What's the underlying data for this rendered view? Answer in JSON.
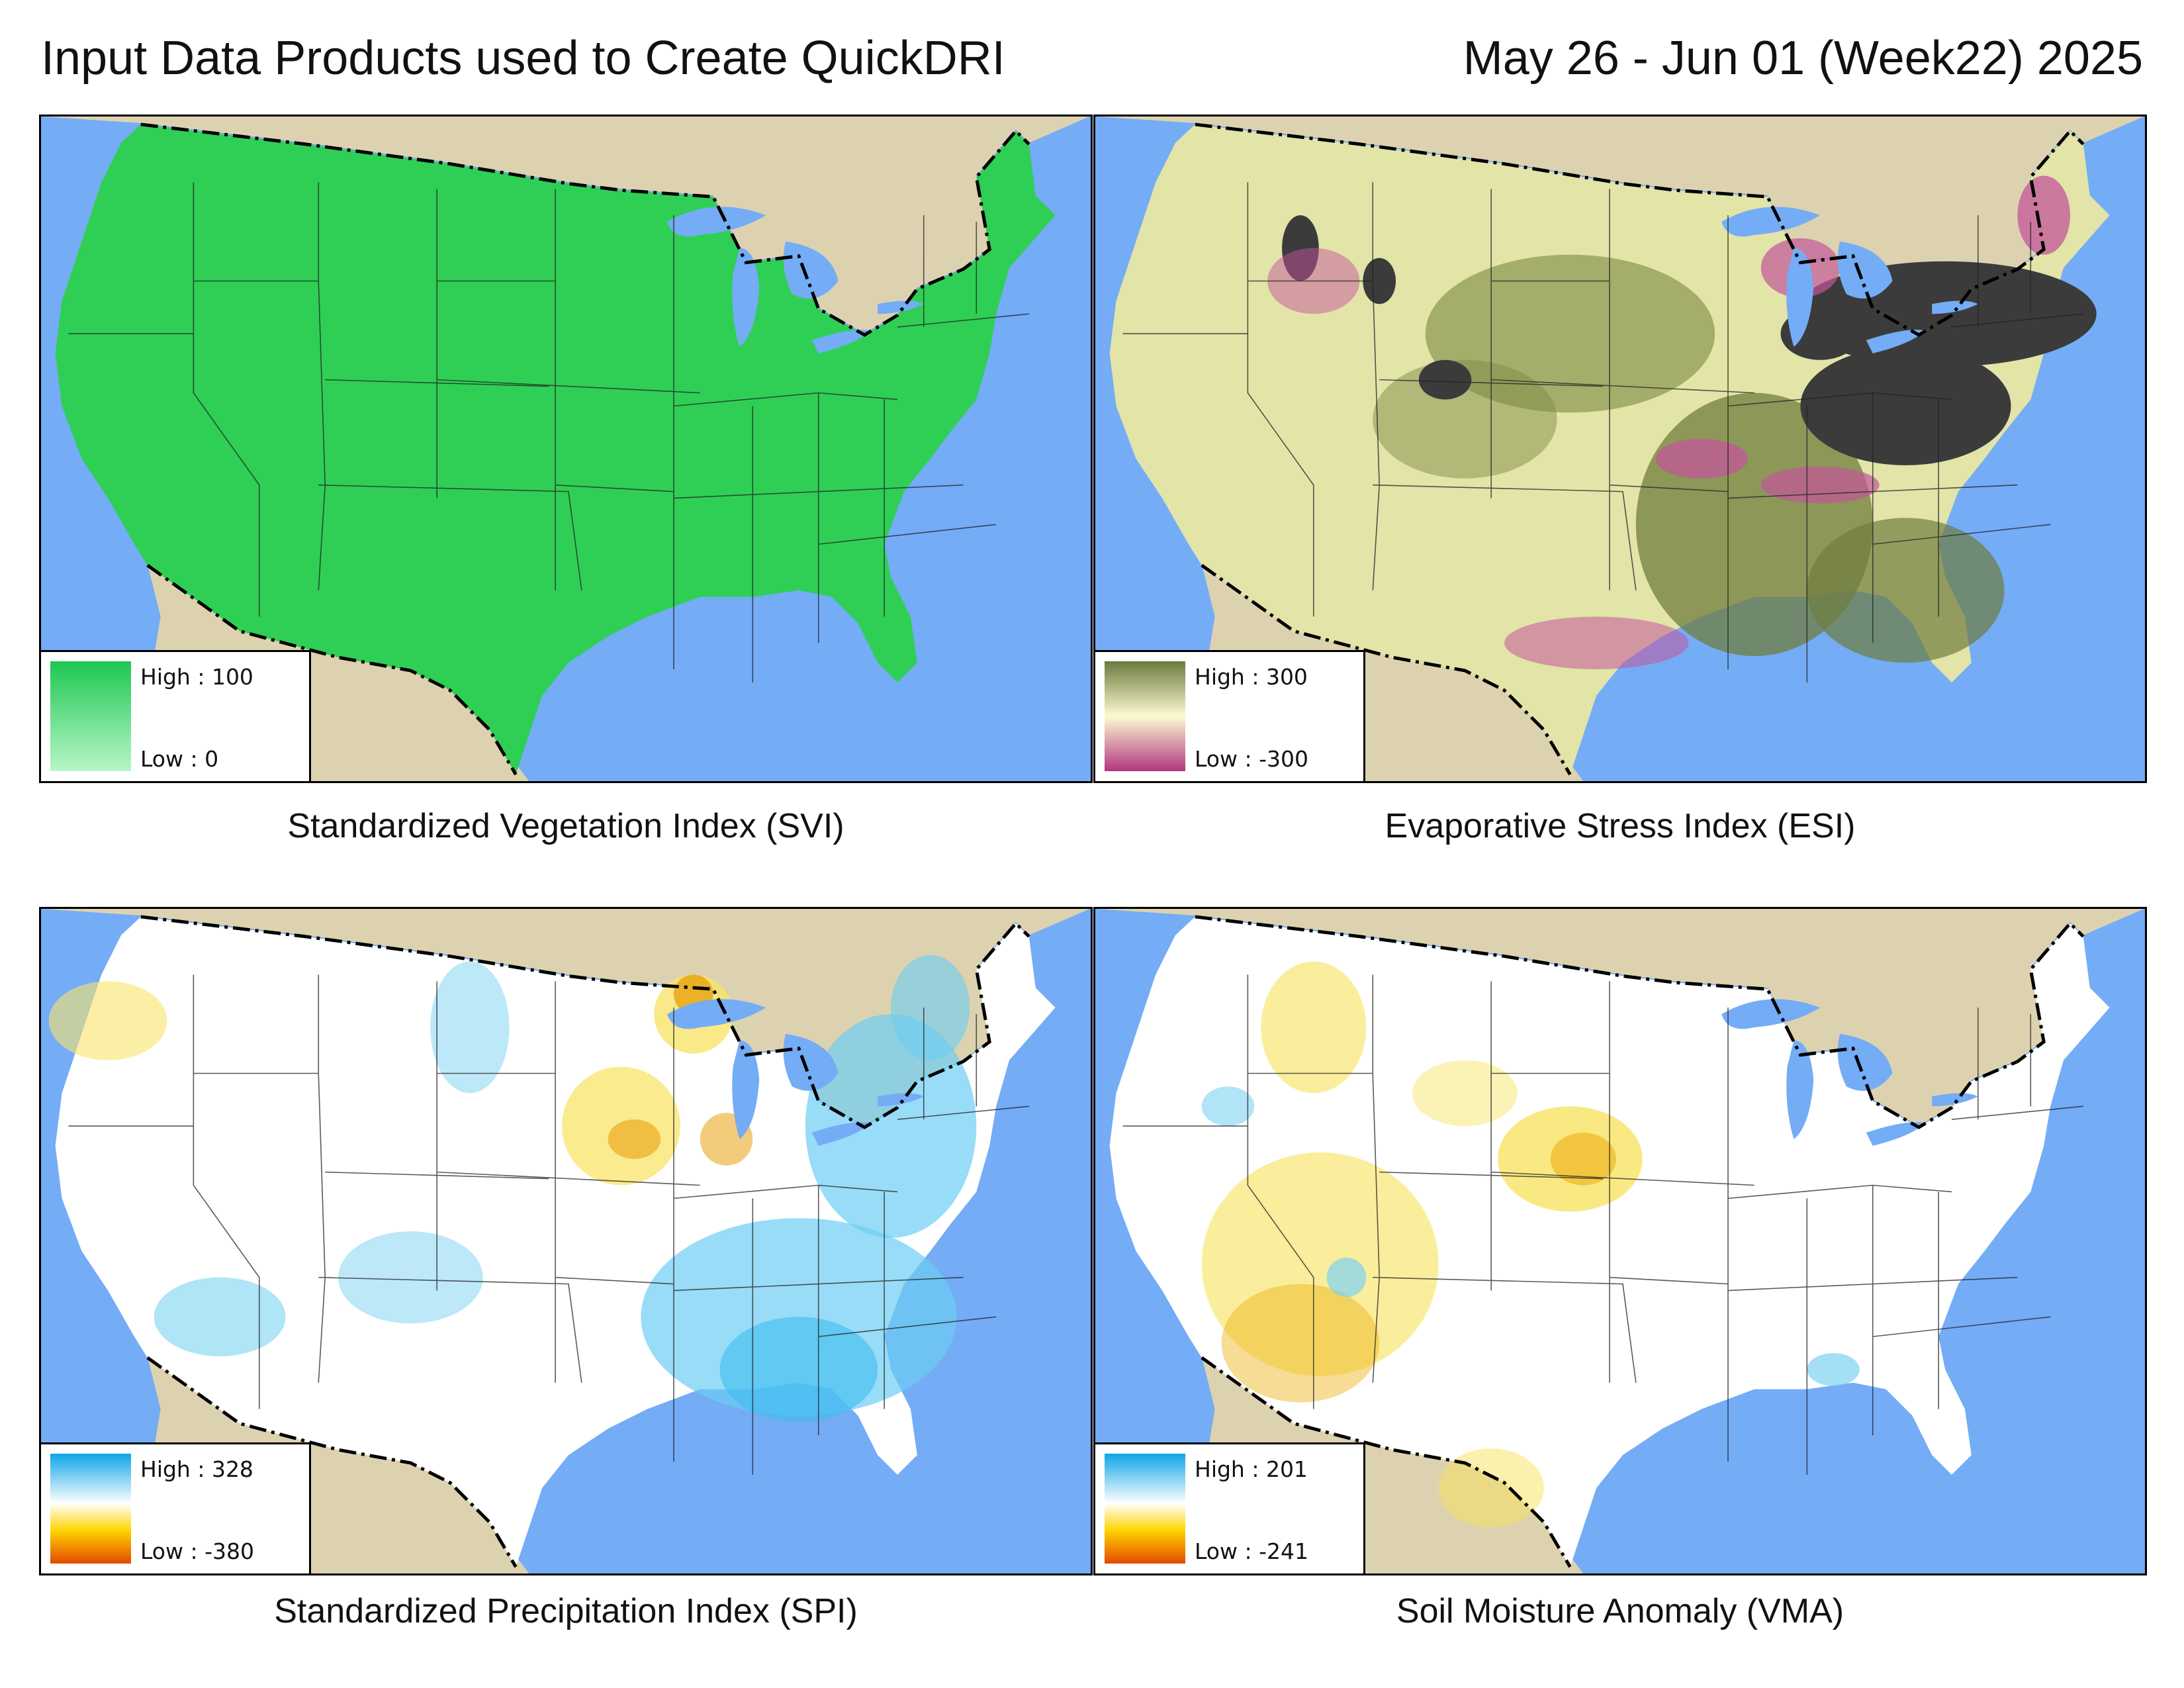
{
  "header": {
    "title": "Input Data Products used to Create QuickDRI",
    "date": "May 26 - Jun 01 (Week22) 2025"
  },
  "colors": {
    "ocean": "#74acf6",
    "land_outside": "#ddd2b0",
    "border_line": "#000000"
  },
  "panels": [
    {
      "caption": "Standardized Vegetation Index (SVI)",
      "legend_high": "High : 100",
      "legend_low": "Low : 0",
      "ramp": [
        "#1ec752",
        "#b8f6c8"
      ],
      "fill": "#2fcf55",
      "patches": []
    },
    {
      "caption": "Evaporative Stress Index (ESI)",
      "legend_high": "High : 300",
      "legend_low": "Low : -300",
      "ramp": [
        "#6b7a3c",
        "#fbfbd2",
        "#b2367f"
      ],
      "fill": "#e2e4a8",
      "patches": [
        "#6f7d3e",
        "#3b3b3b",
        "#c3559a",
        "#f1ecc4"
      ]
    },
    {
      "caption": "Standardized Precipitation Index (SPI)",
      "legend_high": "High : 328",
      "legend_low": "Low : -380",
      "ramp": [
        "#0ea6e6",
        "#ffffff",
        "#ffd400",
        "#e24900"
      ],
      "fill": "#ffffff",
      "patches": [
        "#6dcdf3",
        "#f9e46a",
        "#e9a20e"
      ]
    },
    {
      "caption": "Soil Moisture Anomaly (VMA)",
      "legend_high": "High : 201",
      "legend_low": "Low : -241",
      "ramp": [
        "#0ea6e6",
        "#ffffff",
        "#ffd400",
        "#e24900"
      ],
      "fill": "#ffffff",
      "patches": [
        "#f7e25a",
        "#ecb113",
        "#7fd2f2"
      ]
    }
  ]
}
